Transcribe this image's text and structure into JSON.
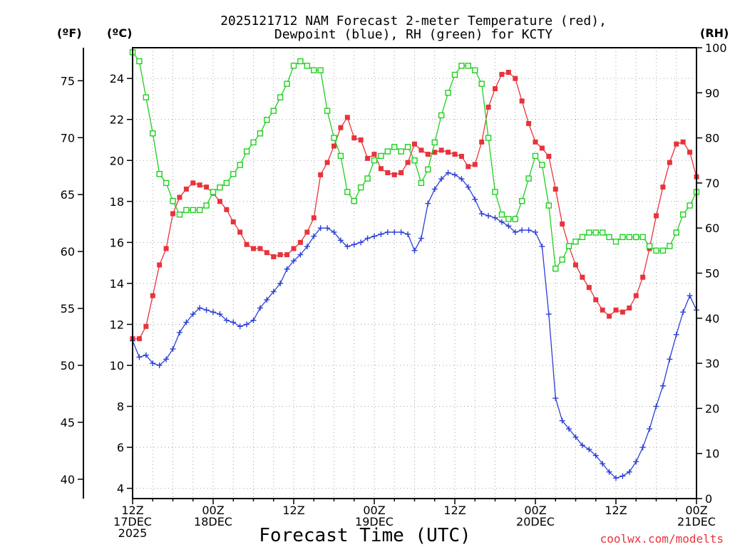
{
  "chart_data": {
    "type": "line",
    "title_line1": "2025121712 NAM Forecast 2-meter Temperature (red),",
    "title_line2": "Dewpoint (blue), RH (green) for KCTY",
    "xlabel": "Forecast Time (UTC)",
    "credit": "coolwx.com/modelts",
    "units": {
      "fahrenheit": "(ºF)",
      "celsius": "(ºC)",
      "rh": "(RH)"
    },
    "left_celsius_axis": {
      "range": [
        3.5,
        25.5
      ],
      "ticks": [
        "4",
        "6",
        "8",
        "10",
        "12",
        "14",
        "16",
        "18",
        "20",
        "22",
        "24"
      ]
    },
    "left_fahrenheit_axis": {
      "range": [
        38.3,
        77.9
      ],
      "ticks": [
        "40",
        "45",
        "50",
        "55",
        "60",
        "65",
        "70",
        "75"
      ]
    },
    "right_rh_axis": {
      "range": [
        0,
        100
      ],
      "ticks": [
        "0",
        "10",
        "20",
        "30",
        "40",
        "50",
        "60",
        "70",
        "80",
        "90",
        "100"
      ]
    },
    "x_range_hours": [
      0,
      84
    ],
    "x_ticks": [
      {
        "hour": 0,
        "line1": "12Z",
        "line2": "17DEC",
        "line3": "2025"
      },
      {
        "hour": 12,
        "line1": "00Z",
        "line2": "18DEC",
        "line3": ""
      },
      {
        "hour": 24,
        "line1": "12Z",
        "line2": "",
        "line3": ""
      },
      {
        "hour": 36,
        "line1": "00Z",
        "line2": "19DEC",
        "line3": ""
      },
      {
        "hour": 48,
        "line1": "12Z",
        "line2": "",
        "line3": ""
      },
      {
        "hour": 60,
        "line1": "00Z",
        "line2": "20DEC",
        "line3": ""
      },
      {
        "hour": 72,
        "line1": "12Z",
        "line2": "",
        "line3": ""
      },
      {
        "hour": 84,
        "line1": "00Z",
        "line2": "21DEC",
        "line3": ""
      }
    ],
    "colors": {
      "temperature": "#e8333b",
      "dewpoint": "#2b3fd6",
      "rh": "#1ed01e",
      "grid": "#a0a0a0"
    },
    "hours": [
      0,
      1,
      2,
      3,
      4,
      5,
      6,
      7,
      8,
      9,
      10,
      11,
      12,
      13,
      14,
      15,
      16,
      17,
      18,
      19,
      20,
      21,
      22,
      23,
      24,
      25,
      26,
      27,
      28,
      29,
      30,
      31,
      32,
      33,
      34,
      35,
      36,
      37,
      38,
      39,
      40,
      41,
      42,
      43,
      44,
      45,
      46,
      47,
      48,
      49,
      50,
      51,
      52,
      53,
      54,
      55,
      56,
      57,
      58,
      59,
      60,
      61,
      62,
      63,
      64,
      65,
      66,
      67,
      68,
      69,
      70,
      71,
      72,
      73,
      74,
      75,
      76,
      77,
      78,
      79,
      80,
      81,
      82,
      83,
      84
    ],
    "series": [
      {
        "name": "Temperature (°C)",
        "axis": "celsius",
        "marker": "filled-square",
        "values": [
          11.3,
          11.3,
          11.9,
          13.4,
          14.9,
          15.7,
          17.4,
          18.2,
          18.6,
          18.9,
          18.8,
          18.7,
          18.4,
          18.0,
          17.6,
          17.0,
          16.5,
          15.9,
          15.7,
          15.7,
          15.5,
          15.3,
          15.4,
          15.4,
          15.7,
          16.0,
          16.5,
          17.2,
          19.3,
          19.9,
          20.7,
          21.6,
          22.1,
          21.1,
          21.0,
          20.1,
          20.3,
          19.6,
          19.4,
          19.3,
          19.4,
          19.9,
          20.8,
          20.5,
          20.3,
          20.4,
          20.5,
          20.4,
          20.3,
          20.2,
          19.7,
          19.8,
          20.9,
          22.6,
          23.5,
          24.2,
          24.3,
          24.0,
          22.9,
          21.8,
          20.9,
          20.6,
          20.2,
          18.6,
          16.9,
          15.8,
          14.9,
          14.3,
          13.8,
          13.2,
          12.7,
          12.4,
          12.7,
          12.6,
          12.8,
          13.4,
          14.3,
          15.7,
          17.3,
          18.7,
          19.9,
          20.8,
          20.9,
          20.4,
          19.2
        ],
        "note": "first and last points sit on the frame"
      },
      {
        "name": "Dewpoint (°C)",
        "axis": "celsius",
        "marker": "plus",
        "values": [
          11.2,
          10.4,
          10.5,
          10.1,
          10.0,
          10.3,
          10.8,
          11.6,
          12.1,
          12.5,
          12.8,
          12.7,
          12.6,
          12.5,
          12.2,
          12.1,
          11.9,
          12.0,
          12.2,
          12.8,
          13.2,
          13.6,
          14.0,
          14.7,
          15.1,
          15.4,
          15.8,
          16.3,
          16.7,
          16.7,
          16.5,
          16.1,
          15.8,
          15.9,
          16.0,
          16.2,
          16.3,
          16.4,
          16.5,
          16.5,
          16.5,
          16.4,
          15.6,
          16.2,
          17.9,
          18.6,
          19.1,
          19.4,
          19.3,
          19.1,
          18.7,
          18.1,
          17.4,
          17.3,
          17.2,
          17.0,
          16.8,
          16.5,
          16.6,
          16.6,
          16.5,
          15.8,
          12.5,
          8.4,
          7.3,
          6.9,
          6.5,
          6.1,
          5.9,
          5.6,
          5.2,
          4.8,
          4.5,
          4.6,
          4.8,
          5.3,
          6.0,
          6.9,
          8.0,
          9.0,
          10.3,
          11.5,
          12.6,
          13.4,
          12.7
        ],
        "note": "plotted as line with + markers"
      },
      {
        "name": "RH (%)",
        "axis": "rh",
        "marker": "open-square",
        "values": [
          99,
          97,
          89,
          81,
          72,
          70,
          66,
          63,
          64,
          64,
          64,
          65,
          68,
          69,
          70,
          72,
          74,
          77,
          79,
          81,
          84,
          86,
          89,
          92,
          96,
          97,
          96,
          95,
          95,
          86,
          80,
          76,
          68,
          66,
          69,
          71,
          75,
          76,
          77,
          78,
          77,
          78,
          75,
          70,
          73,
          79,
          85,
          90,
          94,
          96,
          96,
          95,
          92,
          80,
          68,
          63,
          62,
          62,
          66,
          71,
          76,
          74,
          65,
          51,
          53,
          56,
          57,
          58,
          59,
          59,
          59,
          58,
          57,
          58,
          58,
          58,
          58,
          56,
          55,
          55,
          56,
          59,
          63,
          65,
          68
        ],
        "note": "open green squares"
      }
    ]
  }
}
